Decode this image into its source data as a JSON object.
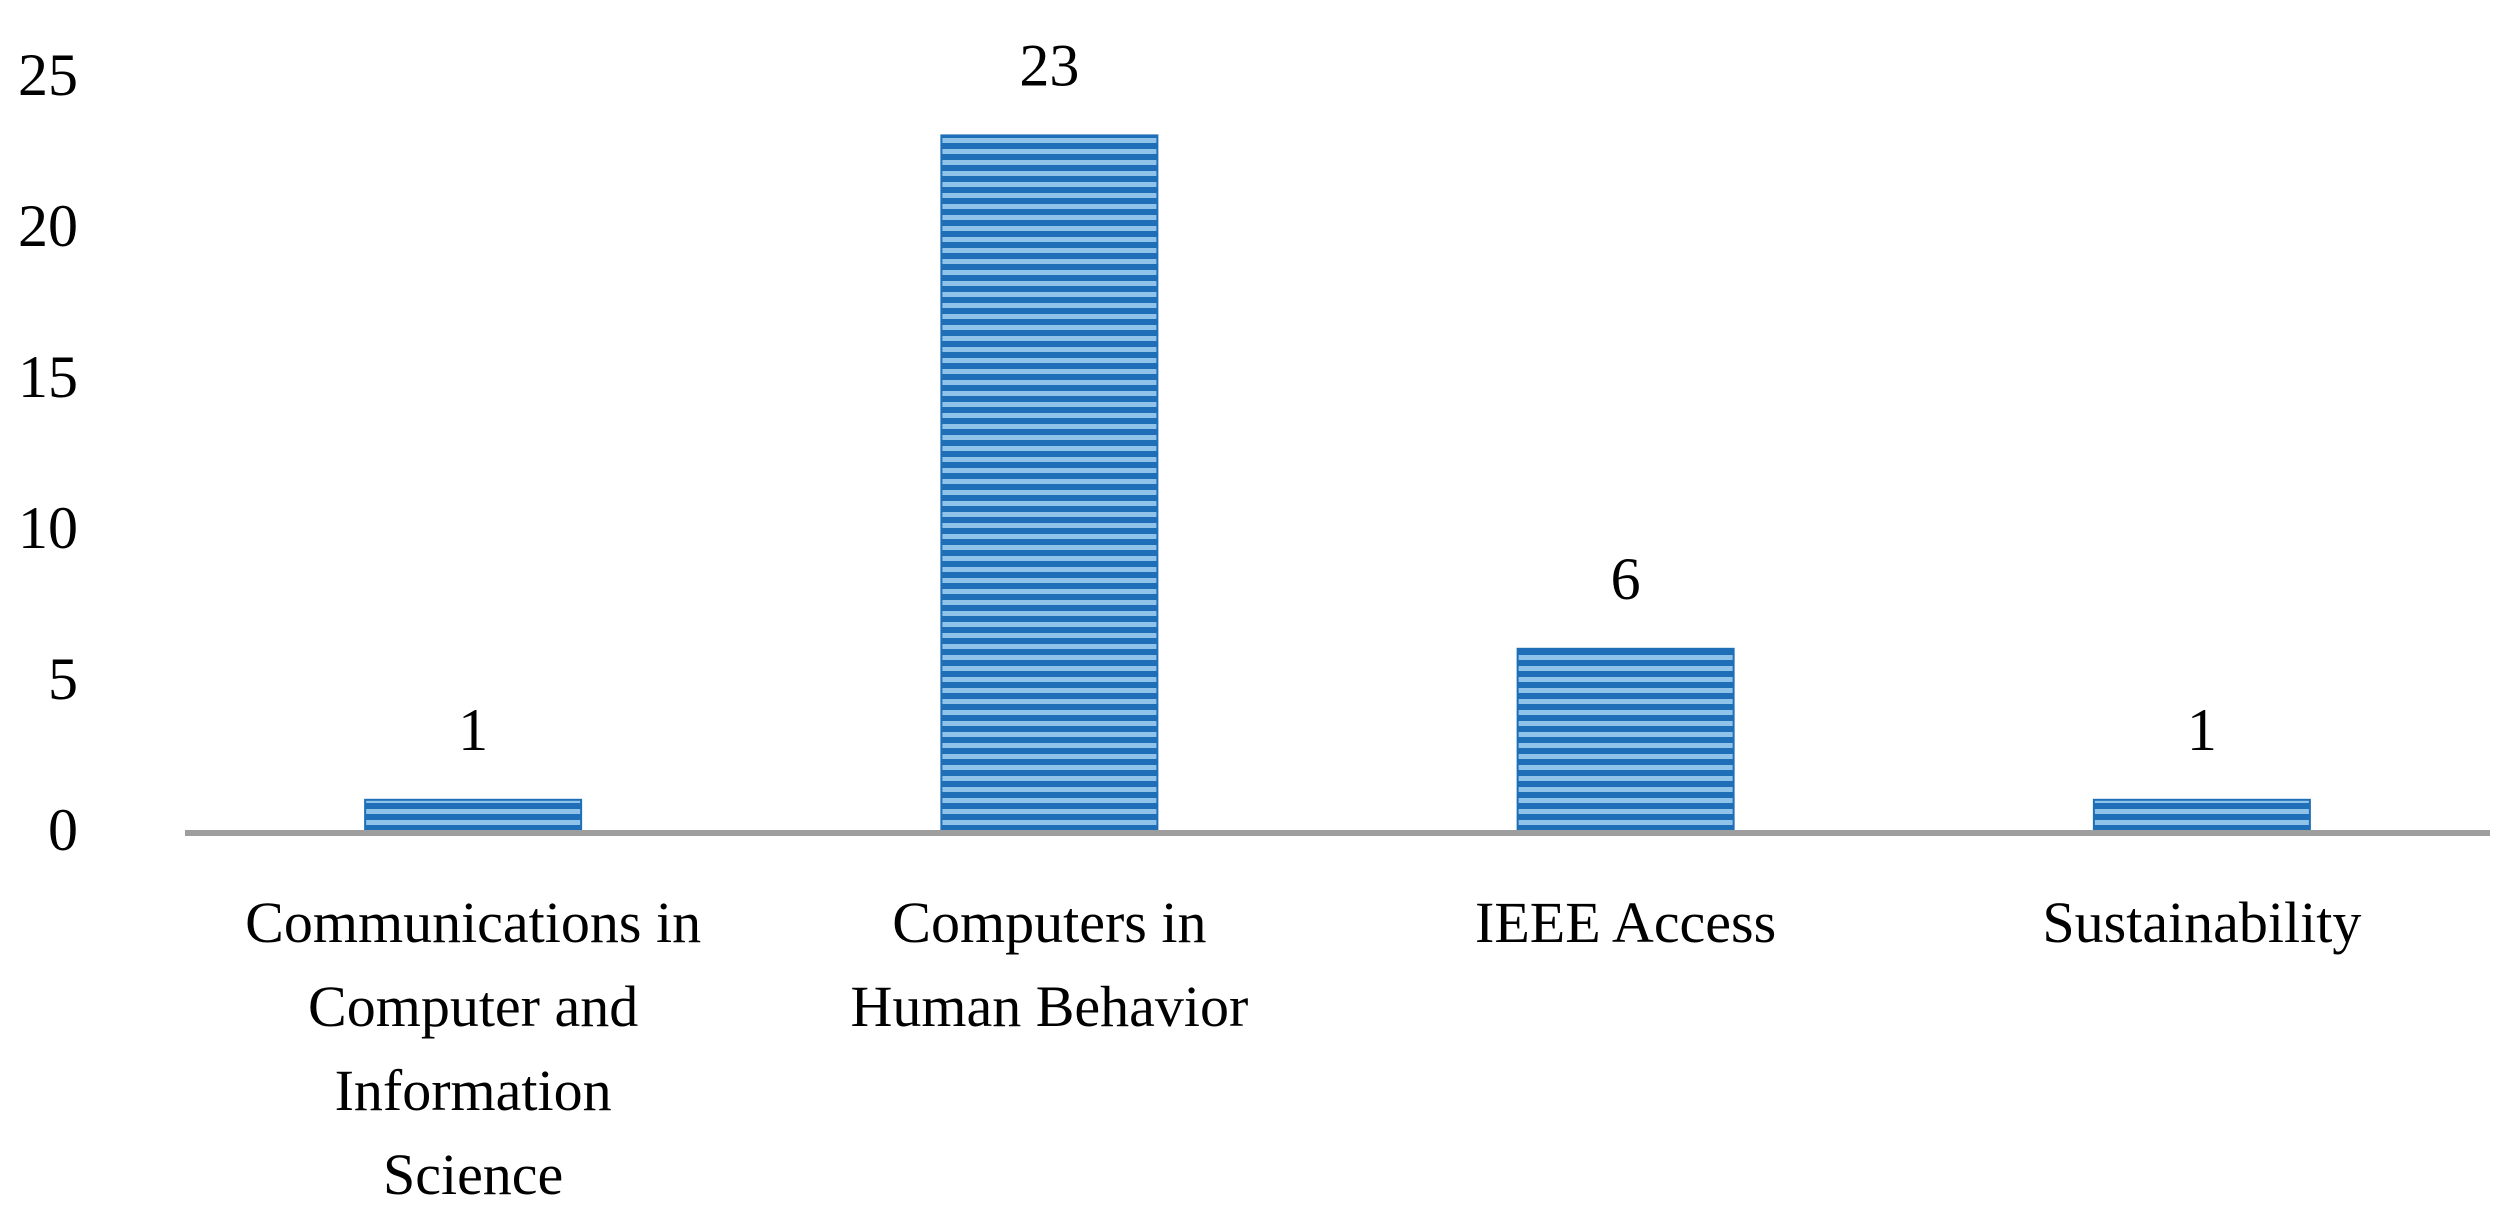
{
  "chart_data": {
    "type": "bar",
    "categories": [
      [
        "Communications in",
        "Computer and",
        "Information",
        "Science"
      ],
      [
        "Computers in",
        "Human Behavior"
      ],
      [
        "IEEE Access"
      ],
      [
        "Sustainability"
      ]
    ],
    "values": [
      1,
      23,
      6,
      1
    ],
    "data_labels": [
      "1",
      "23",
      "6",
      "1"
    ],
    "y_ticks": [
      "0",
      "5",
      "10",
      "15",
      "20",
      "25"
    ],
    "ylim": [
      0,
      25
    ],
    "title": "",
    "xlabel": "",
    "ylabel": "",
    "grid": false,
    "legend": "none",
    "colors": {
      "bar_light": "#8fc3ea",
      "bar_dark": "#1f6fb8",
      "axis": "#9e9e9e"
    }
  }
}
